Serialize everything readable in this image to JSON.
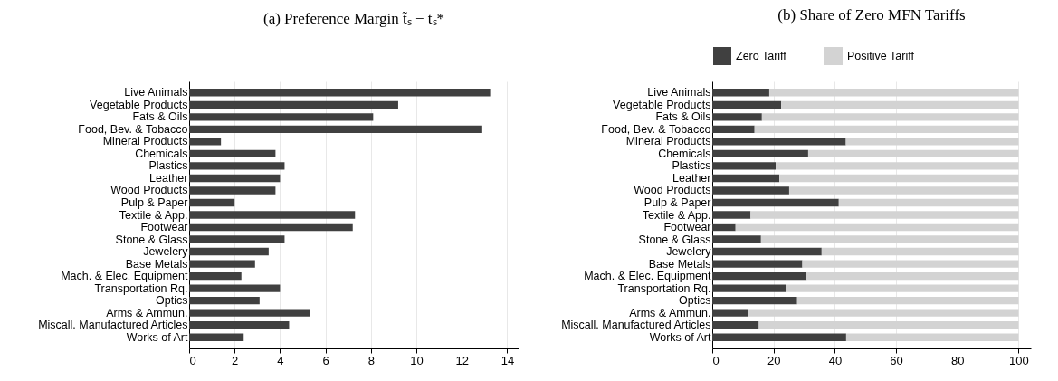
{
  "chart_data": [
    {
      "type": "bar",
      "orientation": "horizontal",
      "title": "(a) Preference Margin t̃ₛ − tₛ*",
      "categories": [
        "Live Animals",
        "Vegetable Products",
        "Fats & Oils",
        "Food, Bev. & Tobacco",
        "Mineral Products",
        "Chemicals",
        "Plastics",
        "Leather",
        "Wood Products",
        "Pulp & Paper",
        "Textile & App.",
        "Footwear",
        "Stone & Glass",
        "Jewelery",
        "Base Metals",
        "Mach. & Elec. Equipment",
        "Transportation Rq.",
        "Optics",
        "Arms & Ammun.",
        "Miscall. Manufactured Articles",
        "Works of Art"
      ],
      "series": [
        {
          "color": "#404040",
          "values": [
            13.25,
            9.2,
            8.1,
            12.9,
            1.4,
            3.8,
            4.2,
            4.0,
            3.8,
            2.0,
            7.3,
            7.2,
            4.2,
            3.5,
            2.9,
            2.3,
            4.0,
            3.1,
            5.3,
            4.4,
            2.4
          ]
        }
      ],
      "xlim": [
        0,
        14.5
      ],
      "xticks": [
        0,
        2,
        4,
        6,
        8,
        10,
        12,
        14
      ],
      "grid": "x",
      "legend": false
    },
    {
      "type": "bar",
      "orientation": "horizontal",
      "stacked": true,
      "title": "(b) Share of Zero MFN Tariffs",
      "categories": [
        "Live Animals",
        "Vegetable Products",
        "Fats & Oils",
        "Food, Bev. & Tobacco",
        "Mineral Products",
        "Chemicals",
        "Plastics",
        "Leather",
        "Wood Products",
        "Pulp & Paper",
        "Textile & App.",
        "Footwear",
        "Stone & Glass",
        "Jewelery",
        "Base Metals",
        "Mach. & Elec. Equipment",
        "Transportation Rq.",
        "Optics",
        "Arms & Ammun.",
        "Miscall. Manufactured Articles",
        "Works of Art"
      ],
      "series": [
        {
          "name": "Zero Tariff",
          "color": "#404040",
          "values": [
            18.6,
            22.5,
            16.2,
            13.8,
            43.6,
            31.3,
            20.7,
            21.9,
            25.1,
            41.3,
            12.5,
            7.6,
            15.9,
            35.7,
            29.4,
            30.8,
            24.1,
            27.7,
            11.6,
            15.2,
            43.7
          ]
        },
        {
          "name": "Positive Tariff",
          "color": "#d3d3d3",
          "values": [
            81.4,
            77.5,
            83.8,
            86.2,
            56.4,
            68.7,
            79.3,
            78.1,
            74.9,
            58.7,
            87.5,
            92.4,
            84.1,
            64.3,
            70.6,
            69.2,
            75.9,
            72.3,
            88.4,
            84.8,
            56.3
          ]
        }
      ],
      "xlim": [
        0,
        104
      ],
      "xticks": [
        0,
        20,
        40,
        60,
        80,
        100
      ],
      "grid": "x",
      "legend": "top"
    }
  ]
}
